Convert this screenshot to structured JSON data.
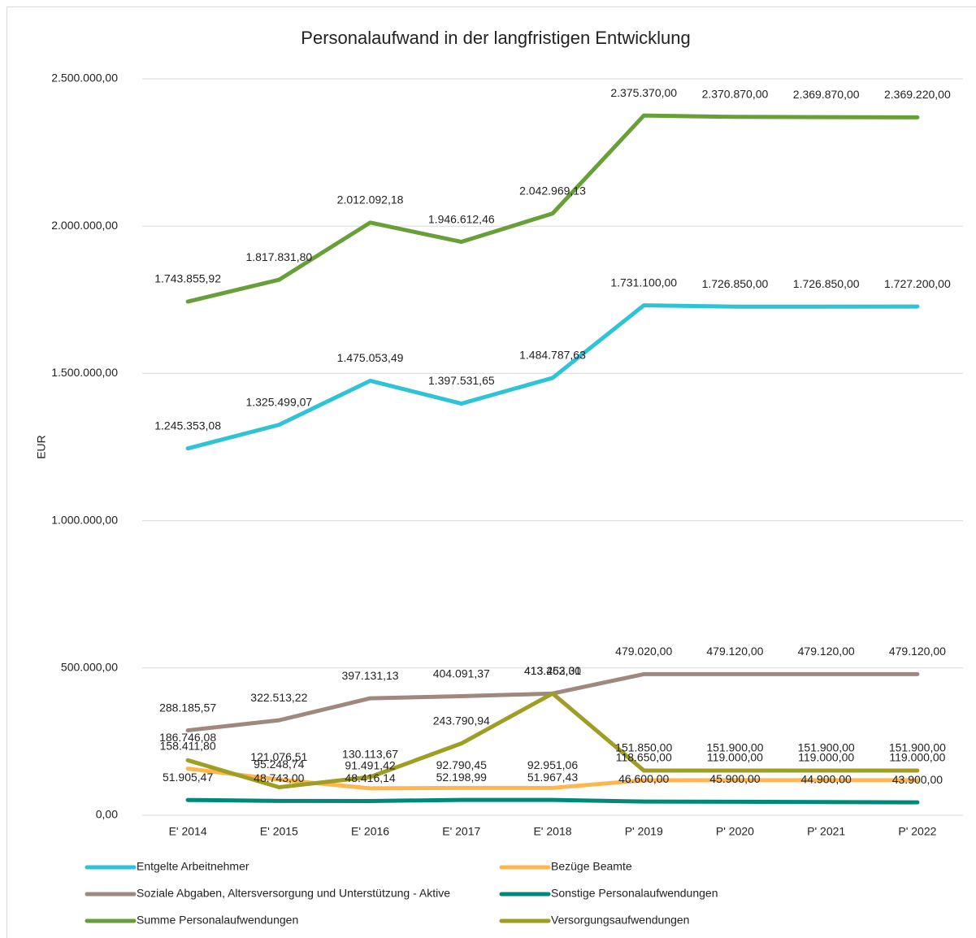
{
  "chart_data": {
    "type": "line",
    "title": "Personalaufwand in der langfristigen Entwicklung",
    "y_label": "EUR",
    "categories": [
      "E' 2014",
      "E' 2015",
      "E' 2016",
      "E' 2017",
      "E' 2018",
      "P' 2019",
      "P' 2020",
      "P' 2021",
      "P' 2022"
    ],
    "ylim": [
      0,
      2500000
    ],
    "yticks": [
      {
        "value": 0,
        "label": "0,00"
      },
      {
        "value": 500000,
        "label": "500.000,00"
      },
      {
        "value": 1000000,
        "label": "1.000.000,00"
      },
      {
        "value": 1500000,
        "label": "1.500.000,00"
      },
      {
        "value": 2000000,
        "label": "2.000.000,00"
      },
      {
        "value": 2500000,
        "label": "2.500.000,00"
      }
    ],
    "grid": true,
    "series": [
      {
        "name": "Entgelte Arbeitnehmer",
        "color": "#2ec4d6",
        "values": [
          1245353.08,
          1325499.07,
          1475053.49,
          1397531.65,
          1484787.63,
          1731100,
          1726850,
          1726850,
          1727200
        ],
        "value_labels": [
          "1.245.353,08",
          "1.325.499,07",
          "1.475.053,49",
          "1.397.531,65",
          "1.484.787,63",
          "1.731.100,00",
          "1.726.850,00",
          "1.726.850,00",
          "1.727.200,00"
        ]
      },
      {
        "name": "Bezüge Beamte",
        "color": "#ffb74d",
        "values": [
          158411.8,
          121076.51,
          91491.42,
          92790.45,
          92951.06,
          118650,
          119000,
          119000,
          119000
        ],
        "value_labels": [
          "158.411,80",
          "121.076,51",
          "91.491,42",
          "92.790,45",
          "92.951,06",
          "118.650,00",
          "119.000,00",
          "119.000,00",
          "119.000,00"
        ]
      },
      {
        "name": "Soziale Abgaben, Altersversorgung und Unterstützung - Aktive",
        "color": "#a1887f",
        "values": [
          288185.57,
          322513.22,
          397131.13,
          404091.37,
          413263.01,
          479020,
          479120,
          479120,
          479120
        ],
        "value_labels": [
          "288.185,57",
          "322.513,22",
          "397.131,13",
          "404.091,37",
          "413.263,01",
          "479.020,00",
          "479.120,00",
          "479.120,00",
          "479.120,00"
        ]
      },
      {
        "name": "Sonstige Personalaufwendungen",
        "color": "#00897b",
        "values": [
          51905.47,
          48743.0,
          48416.14,
          52198.99,
          51967.43,
          46600,
          45900,
          44900,
          43900
        ],
        "value_labels": [
          "51.905,47",
          "48.743,00",
          "48.416,14",
          "52.198,99",
          "51.967,43",
          "46.600,00",
          "45.900,00",
          "44.900,00",
          "43.900,00"
        ]
      },
      {
        "name": "Summe Personalaufwendungen",
        "color": "#689f38",
        "values": [
          1743855.92,
          1817831.8,
          2012092.18,
          1946612.46,
          2042969.13,
          2375370,
          2370870,
          2369870,
          2369220
        ],
        "value_labels": [
          "1.743.855,92",
          "1.817.831,80",
          "2.012.092,18",
          "1.946.612,46",
          "2.042.969,13",
          "2.375.370,00",
          "2.370.870,00",
          "2.369.870,00",
          "2.369.220,00"
        ]
      },
      {
        "name": "Versorgungsaufwendungen",
        "color": "#9e9d24",
        "values": [
          186746.08,
          95248.74,
          130113.67,
          243790.94,
          413452.3,
          151850,
          151900,
          151900,
          151900
        ],
        "value_labels": [
          "186.746,08",
          "95.248,74",
          "130.113,67",
          "243.790,94",
          "413.452,30",
          "151.850,00",
          "151.900,00",
          "151.900,00",
          "151.900,00"
        ]
      }
    ]
  }
}
